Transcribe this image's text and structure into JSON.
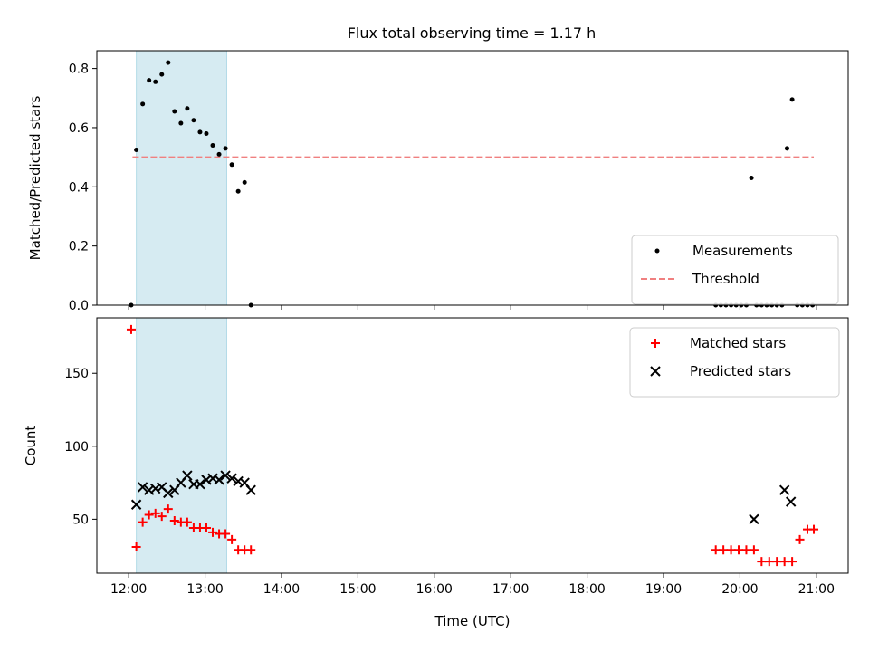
{
  "title": "Flux total observing time = 1.17 h",
  "chart_data": [
    {
      "type": "scatter",
      "ylabel": "Matched/Predicted stars",
      "xlim": [
        "11:35",
        "21:25"
      ],
      "ylim": [
        0,
        0.86
      ],
      "yticks": [
        "0.0",
        "0.2",
        "0.4",
        "0.6",
        "0.8"
      ],
      "grid": false,
      "legend_position": "lower-right",
      "shaded_interval": {
        "start": "12:06",
        "end": "13:17",
        "color": "#add8e6"
      },
      "threshold": {
        "name": "Threshold",
        "value": 0.5,
        "x_start": "12:03",
        "x_end": "20:58",
        "color": "#f08080"
      },
      "series": [
        {
          "name": "Measurements",
          "color": "#000000",
          "x": [
            "12:02",
            "12:06",
            "12:11",
            "12:16",
            "12:21",
            "12:26",
            "12:31",
            "12:36",
            "12:41",
            "12:46",
            "12:51",
            "12:56",
            "13:01",
            "13:06",
            "13:11",
            "13:16",
            "13:21",
            "13:26",
            "13:31",
            "13:36",
            "19:41",
            "19:45",
            "19:49",
            "19:53",
            "19:57",
            "20:01",
            "20:05",
            "20:09",
            "20:13",
            "20:17",
            "20:21",
            "20:25",
            "20:29",
            "20:33",
            "20:37",
            "20:41",
            "20:45",
            "20:49",
            "20:53",
            "20:57"
          ],
          "y": [
            0.0,
            0.525,
            0.68,
            0.76,
            0.755,
            0.78,
            0.82,
            0.655,
            0.615,
            0.665,
            0.625,
            0.585,
            0.58,
            0.54,
            0.51,
            0.53,
            0.475,
            0.385,
            0.415,
            0.0,
            0.0,
            0.0,
            0.0,
            0.0,
            0.0,
            0.0,
            0.0,
            0.43,
            0.0,
            0.0,
            0.0,
            0.0,
            0.0,
            0.0,
            0.53,
            0.695,
            0.0,
            0.0,
            0.0,
            0.0
          ]
        }
      ]
    },
    {
      "type": "scatter",
      "xlabel": "Time (UTC)",
      "ylabel": "Count",
      "xlim": [
        "11:35",
        "21:25"
      ],
      "ylim": [
        13,
        188
      ],
      "xticks": [
        "12:00",
        "13:00",
        "14:00",
        "15:00",
        "16:00",
        "17:00",
        "18:00",
        "19:00",
        "20:00",
        "21:00"
      ],
      "yticks": [
        "50",
        "100",
        "150"
      ],
      "grid": false,
      "legend_position": "upper-right",
      "shaded_interval": {
        "start": "12:06",
        "end": "13:17",
        "color": "#add8e6"
      },
      "series": [
        {
          "name": "Matched stars",
          "color": "#ff0000",
          "x": [
            "12:02",
            "12:06",
            "12:11",
            "12:16",
            "12:21",
            "12:26",
            "12:31",
            "12:36",
            "12:41",
            "12:46",
            "12:51",
            "12:56",
            "13:01",
            "13:06",
            "13:11",
            "13:16",
            "13:21",
            "13:26",
            "13:31",
            "13:36",
            "19:41",
            "19:47",
            "19:53",
            "19:59",
            "20:05",
            "20:11",
            "20:17",
            "20:23",
            "20:29",
            "20:35",
            "20:41",
            "20:47",
            "20:53",
            "20:58"
          ],
          "y": [
            180,
            31,
            48,
            53,
            54,
            52,
            57,
            49,
            48,
            48,
            44,
            44,
            44,
            41,
            40,
            40,
            36,
            29,
            29,
            29,
            29,
            29,
            29,
            29,
            29,
            29,
            21,
            21,
            21,
            21,
            21,
            36,
            43,
            43
          ]
        },
        {
          "name": "Predicted stars",
          "color": "#000000",
          "x": [
            "12:06",
            "12:11",
            "12:16",
            "12:21",
            "12:26",
            "12:31",
            "12:36",
            "12:41",
            "12:46",
            "12:51",
            "12:56",
            "13:01",
            "13:06",
            "13:11",
            "13:16",
            "13:21",
            "13:26",
            "13:31",
            "13:36",
            "20:11",
            "20:35",
            "20:40"
          ],
          "y": [
            60,
            72,
            70,
            71,
            72,
            68,
            70,
            75,
            80,
            74,
            74,
            77,
            78,
            77,
            80,
            78,
            76,
            75,
            70,
            50,
            70,
            62
          ]
        }
      ]
    }
  ]
}
